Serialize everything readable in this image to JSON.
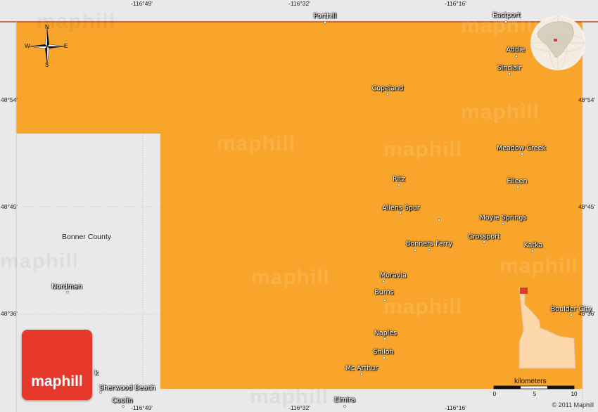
{
  "map": {
    "county_label": "Bonner County",
    "copyright": "© 2011 Maphill",
    "logo_text": "maphill",
    "watermark_text": "maphill",
    "colors": {
      "territory": "#f9a52c",
      "background": "#e9e9e9",
      "logo": "#e5382a",
      "inset": "#fcd7ab"
    }
  },
  "coordinates": {
    "top": [
      "-116°49'",
      "-116°32'",
      "-116°16'"
    ],
    "bottom": [
      "-116°49'",
      "-116°32'",
      "-116°16'"
    ],
    "left": [
      "48°54'",
      "48°45'",
      "48°36'"
    ],
    "right": [
      "48°54'",
      "48°45'",
      "48°36'"
    ]
  },
  "compass": {
    "n": "N",
    "s": "S",
    "e": "E",
    "w": "W"
  },
  "scale": {
    "label": "kilometers",
    "ticks": [
      "0",
      "5",
      "10"
    ]
  },
  "places": [
    "Porthill",
    "Eastport",
    "Addie",
    "Sinclair",
    "Copeland",
    "Meadow Creek",
    "Ritz",
    "Eileen",
    "Allens Spur",
    "Moyie Springs",
    "Crossport",
    "Bonners Ferry",
    "Katka",
    "Moravia",
    "Burns",
    "Boulder City",
    "Naples",
    "Shiloh",
    "Mc Arthur",
    "Elmira",
    "Nordman",
    "Sherwood Beach",
    "Coolin",
    "k"
  ]
}
